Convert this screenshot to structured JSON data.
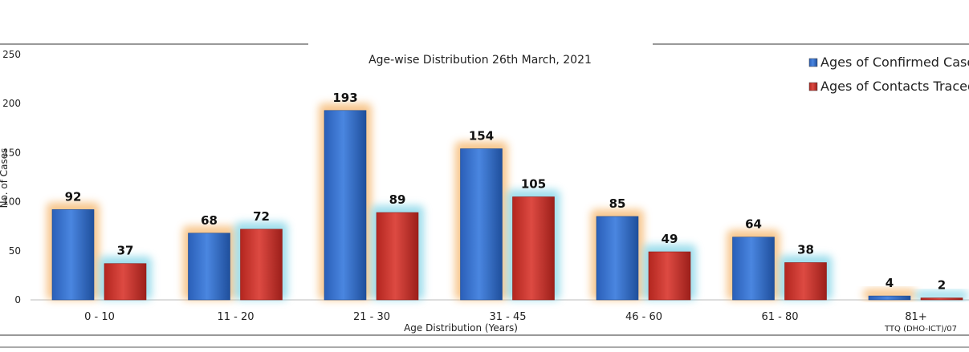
{
  "chart_data": {
    "type": "bar",
    "title": "Age-wise Distribution 26th March, 2021",
    "xlabel": "Age Distribution (Years)",
    "ylabel": "No. of Cases",
    "ylim": [
      0,
      250
    ],
    "yticks": [
      0,
      50,
      100,
      150,
      200,
      250
    ],
    "categories": [
      "0 - 10",
      "11 - 20",
      "21 - 30",
      "31 - 45",
      "46 - 60",
      "61 - 80",
      "81+"
    ],
    "series": [
      {
        "name": "Ages of Confirmed Cases",
        "color": "#2e6cc9",
        "glow": "#f5b56a",
        "values": [
          92,
          68,
          193,
          154,
          85,
          64,
          4
        ]
      },
      {
        "name": "Ages of Contacts Traced",
        "color": "#c9302b",
        "glow": "#7fd3e6",
        "values": [
          37,
          72,
          89,
          105,
          49,
          38,
          2
        ]
      }
    ],
    "legend_position": "top-right",
    "grid": false,
    "footnote": "TTQ (DHO-ICT)/07"
  }
}
